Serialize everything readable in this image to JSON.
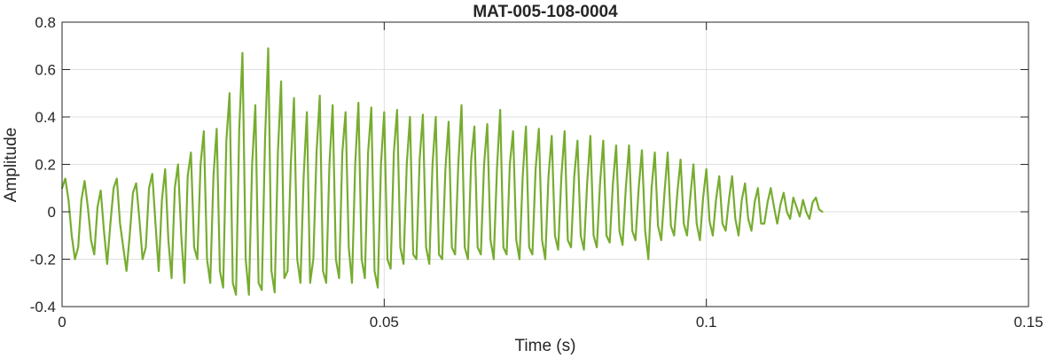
{
  "chart_data": {
    "type": "line",
    "title": "MAT-005-108-0004",
    "xlabel": "Time (s)",
    "ylabel": "Amplitude",
    "xlim": [
      0,
      0.15
    ],
    "ylim": [
      -0.4,
      0.8
    ],
    "grid": true,
    "x_ticks": [
      0,
      0.05,
      0.1,
      0.15
    ],
    "x_tick_labels": [
      "0",
      "0.05",
      "0.1",
      "0.15"
    ],
    "y_ticks": [
      -0.4,
      -0.2,
      0,
      0.2,
      0.4,
      0.6,
      0.8
    ],
    "y_tick_labels": [
      "-0.4",
      "-0.2",
      "0",
      "0.2",
      "0.4",
      "0.6",
      "0.8"
    ],
    "series": [
      {
        "color": "#77ac30",
        "sample_interval": 0.0005,
        "x_start": 0,
        "values": [
          0.1,
          0.14,
          0.05,
          -0.1,
          -0.2,
          -0.15,
          0.05,
          0.13,
          0.02,
          -0.12,
          -0.18,
          0.02,
          0.09,
          -0.08,
          -0.22,
          -0.05,
          0.1,
          0.14,
          -0.05,
          -0.15,
          -0.25,
          -0.1,
          0.08,
          0.12,
          -0.03,
          -0.2,
          -0.15,
          0.1,
          0.16,
          -0.05,
          -0.25,
          0.05,
          0.18,
          -0.12,
          -0.28,
          0.1,
          0.2,
          -0.1,
          -0.3,
          0.15,
          0.25,
          -0.15,
          -0.2,
          0.2,
          0.34,
          -0.2,
          -0.3,
          0.15,
          0.35,
          -0.25,
          -0.32,
          0.3,
          0.5,
          -0.3,
          -0.35,
          0.35,
          0.67,
          -0.2,
          -0.35,
          0.2,
          0.45,
          -0.3,
          -0.33,
          0.3,
          0.69,
          -0.25,
          -0.34,
          0.25,
          0.55,
          -0.28,
          -0.25,
          0.2,
          0.48,
          -0.2,
          -0.3,
          0.15,
          0.42,
          -0.3,
          -0.2,
          0.25,
          0.49,
          -0.25,
          -0.3,
          0.2,
          0.45,
          -0.2,
          -0.28,
          0.25,
          0.42,
          -0.15,
          -0.3,
          0.2,
          0.46,
          -0.2,
          -0.28,
          0.25,
          0.44,
          -0.25,
          -0.32,
          0.2,
          0.42,
          -0.2,
          -0.24,
          0.25,
          0.43,
          -0.15,
          -0.22,
          0.2,
          0.4,
          -0.18,
          -0.2,
          0.22,
          0.41,
          -0.15,
          -0.22,
          0.2,
          0.4,
          -0.18,
          -0.2,
          0.18,
          0.38,
          -0.15,
          -0.18,
          0.2,
          0.45,
          -0.15,
          -0.2,
          0.22,
          0.36,
          -0.15,
          -0.18,
          0.2,
          0.37,
          -0.12,
          -0.2,
          0.18,
          0.43,
          -0.15,
          -0.18,
          0.2,
          0.34,
          -0.12,
          -0.2,
          0.15,
          0.36,
          -0.15,
          -0.18,
          0.18,
          0.35,
          -0.12,
          -0.2,
          0.15,
          0.32,
          -0.1,
          -0.16,
          0.15,
          0.34,
          -0.12,
          -0.15,
          0.15,
          0.3,
          -0.1,
          -0.16,
          0.12,
          0.32,
          -0.1,
          -0.15,
          0.12,
          0.3,
          -0.1,
          -0.13,
          0.12,
          0.28,
          -0.08,
          -0.14,
          0.1,
          0.28,
          -0.08,
          -0.12,
          0.1,
          0.26,
          -0.08,
          -0.2,
          0.1,
          0.25,
          -0.06,
          -0.12,
          0.08,
          0.25,
          -0.06,
          -0.1,
          0.08,
          0.22,
          -0.05,
          -0.1,
          0.06,
          0.2,
          -0.05,
          -0.12,
          0.06,
          0.18,
          -0.04,
          -0.1,
          0.05,
          0.15,
          -0.05,
          -0.08,
          0.05,
          0.15,
          -0.03,
          -0.1,
          0.05,
          0.12,
          -0.03,
          -0.08,
          0.04,
          0.1,
          -0.05,
          -0.05,
          0.04,
          0.1,
          0.02,
          -0.05,
          0.03,
          0.08,
          0.0,
          -0.03,
          0.06,
          0.02,
          -0.02,
          0.05,
          0.0,
          -0.03,
          0.04,
          0.06,
          0.01,
          0.0
        ]
      }
    ]
  }
}
